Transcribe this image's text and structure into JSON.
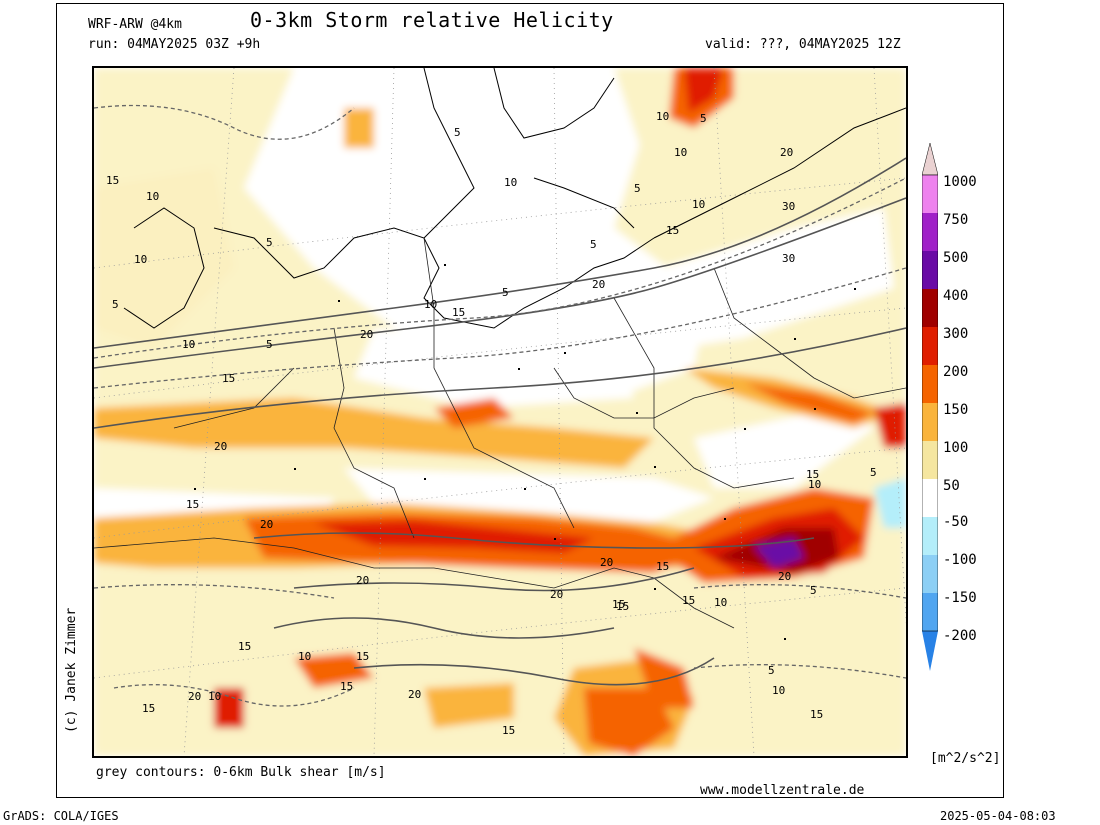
{
  "header": {
    "model": "WRF-ARW @4km",
    "title": "0-3km Storm relative Helicity",
    "run": "run: 04MAY2025 03Z +9h",
    "valid": "valid: ???, 04MAY2025 12Z"
  },
  "credit": "(c) Janek Zimmer",
  "map": {
    "contour_labels": [
      "5",
      "10",
      "15",
      "20",
      "30"
    ],
    "shear_note": "grey contours: 0-6km Bulk shear [m/s]",
    "website": "www.modellzentrale.de"
  },
  "colorbar": {
    "unit": "[m^2/s^2]",
    "levels": [
      {
        "label": "1000",
        "color": "#ead2d2"
      },
      {
        "label": "750",
        "color": "#ee82ee"
      },
      {
        "label": "500",
        "color": "#a020c8"
      },
      {
        "label": "400",
        "color": "#6a0aa6"
      },
      {
        "label": "300",
        "color": "#a00000"
      },
      {
        "label": "200",
        "color": "#e01e00"
      },
      {
        "label": "150",
        "color": "#f56400"
      },
      {
        "label": "100",
        "color": "#fab43c"
      },
      {
        "label": "50",
        "color": "#f5e6a0"
      },
      {
        "label": "-50",
        "color": "#ffffff"
      },
      {
        "label": "-100",
        "color": "#b4eefa"
      },
      {
        "label": "-150",
        "color": "#8ccff5"
      },
      {
        "label": "-200",
        "color": "#50a5f0"
      },
      {
        "label": "",
        "color": "#2882e6"
      }
    ]
  },
  "footer": {
    "left": "GrADS: COLA/IGES",
    "right": "2025-05-04-08:03"
  }
}
